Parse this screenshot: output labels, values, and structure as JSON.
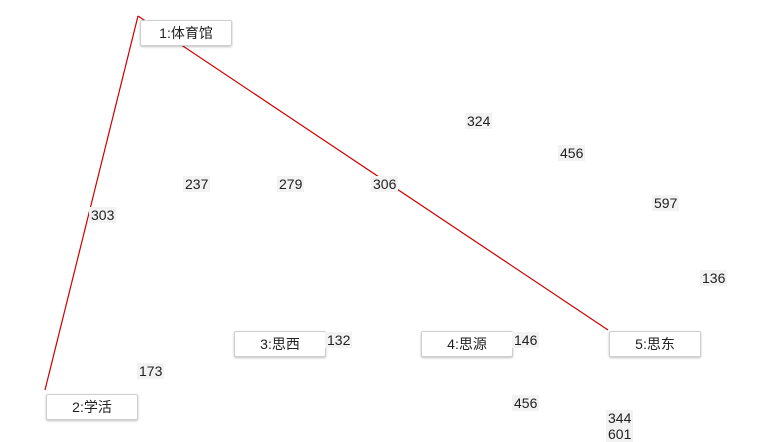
{
  "nodes": [
    {
      "id": "n1",
      "label": "1:体育馆"
    },
    {
      "id": "n2",
      "label": "2:学活"
    },
    {
      "id": "n3",
      "label": "3:思西"
    },
    {
      "id": "n4",
      "label": "4:思源"
    },
    {
      "id": "n5",
      "label": "5:思东"
    }
  ],
  "edge_weights": [
    "324",
    "456",
    "237",
    "279",
    "306",
    "597",
    "303",
    "136",
    "132",
    "146",
    "173",
    "456",
    "344",
    "601"
  ],
  "highlight_path": [
    "n2",
    "n1",
    "n5"
  ],
  "colors": {
    "path": "#cc0000",
    "node_border": "#cfcfcf",
    "weight_bg": "#f2f2f2"
  }
}
